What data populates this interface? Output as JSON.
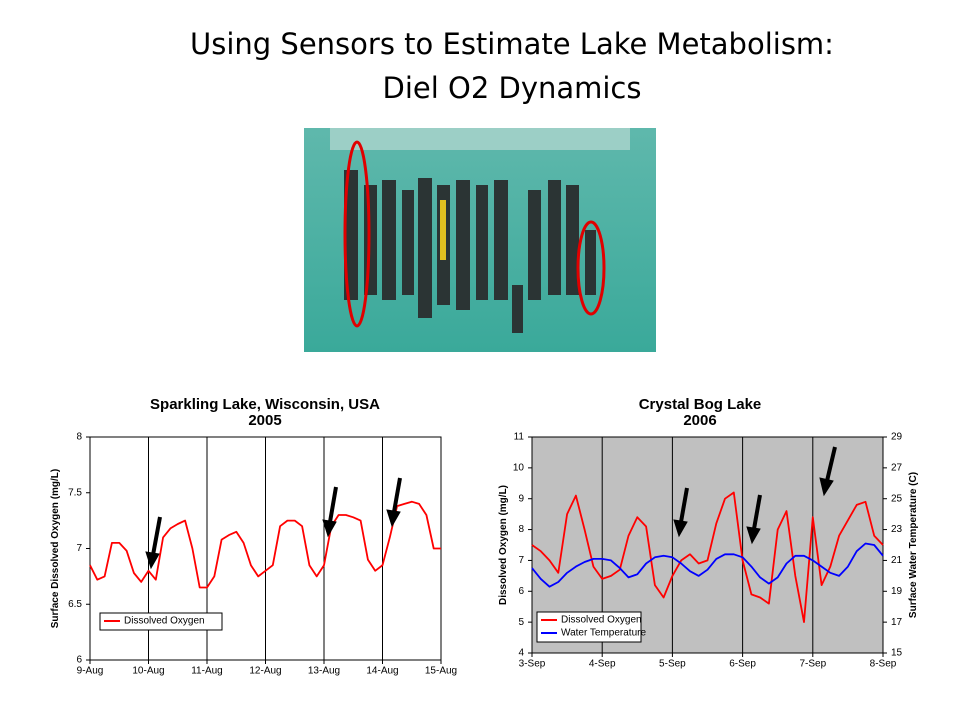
{
  "slide": {
    "title_lines": [
      "Using Sensors to Estimate Lake Metabolism:",
      "Diel O2 Dynamics"
    ]
  },
  "chart_data": [
    {
      "type": "line",
      "title": "Sparkling Lake, Wisconsin, USA",
      "subtitle": "2005",
      "y_label": "Surface Dissolved Oxygen (mg/L)",
      "xlim": [
        0,
        6
      ],
      "xticks": [
        {
          "value": 0,
          "label": "9-Aug"
        },
        {
          "value": 1,
          "label": "10-Aug"
        },
        {
          "value": 2,
          "label": "11-Aug"
        },
        {
          "value": 3,
          "label": "12-Aug"
        },
        {
          "value": 4,
          "label": "13-Aug"
        },
        {
          "value": 5,
          "label": "14-Aug"
        },
        {
          "value": 6,
          "label": "15-Aug"
        }
      ],
      "ylim": [
        6,
        8
      ],
      "yticks": [
        6,
        6.5,
        7,
        7.5,
        8
      ],
      "grid": true,
      "plot_background": "#ffffff",
      "legend": "lower left",
      "x": [
        0,
        0.125,
        0.25,
        0.375,
        0.5,
        0.625,
        0.75,
        0.875,
        1,
        1.125,
        1.25,
        1.375,
        1.5,
        1.625,
        1.75,
        1.875,
        2,
        2.125,
        2.25,
        2.375,
        2.5,
        2.625,
        2.75,
        2.875,
        3,
        3.125,
        3.25,
        3.375,
        3.5,
        3.625,
        3.75,
        3.875,
        4,
        4.125,
        4.25,
        4.375,
        4.5,
        4.625,
        4.75,
        4.875,
        5,
        5.125,
        5.25,
        5.375,
        5.5,
        5.625,
        5.75,
        5.875,
        6
      ],
      "series": [
        {
          "name": "Dissolved Oxygen",
          "color": "#ff0000",
          "values": [
            6.85,
            6.72,
            6.75,
            7.05,
            7.05,
            6.98,
            6.78,
            6.7,
            6.8,
            6.72,
            7.1,
            7.18,
            7.22,
            7.25,
            7.0,
            6.65,
            6.65,
            6.75,
            7.08,
            7.12,
            7.15,
            7.05,
            6.85,
            6.75,
            6.8,
            6.85,
            7.2,
            7.25,
            7.25,
            7.2,
            6.85,
            6.75,
            6.85,
            7.2,
            7.3,
            7.3,
            7.28,
            7.25,
            6.9,
            6.8,
            6.85,
            7.1,
            7.38,
            7.4,
            7.42,
            7.4,
            7.3,
            7.0,
            7.0
          ]
        }
      ]
    },
    {
      "type": "line",
      "title": "Crystal Bog Lake",
      "subtitle": "2006",
      "y_label": "Dissolved Oxygen (mg/L)",
      "y2_label": "Surface Water Temperature (C)",
      "xlim": [
        0,
        5
      ],
      "xticks": [
        {
          "value": 0,
          "label": "3-Sep"
        },
        {
          "value": 1,
          "label": "4-Sep"
        },
        {
          "value": 2,
          "label": "5-Sep"
        },
        {
          "value": 3,
          "label": "6-Sep"
        },
        {
          "value": 4,
          "label": "7-Sep"
        },
        {
          "value": 5,
          "label": "8-Sep"
        }
      ],
      "ylim": [
        4,
        11
      ],
      "yticks": [
        4,
        5,
        6,
        7,
        8,
        9,
        10,
        11
      ],
      "y2lim": [
        15,
        29
      ],
      "y2ticks": [
        15,
        17,
        19,
        21,
        23,
        25,
        27,
        29
      ],
      "grid": true,
      "plot_background": "#c0c0c0",
      "legend": "lower left",
      "x": [
        0,
        0.125,
        0.25,
        0.375,
        0.5,
        0.625,
        0.75,
        0.875,
        1,
        1.125,
        1.25,
        1.375,
        1.5,
        1.625,
        1.75,
        1.875,
        2,
        2.125,
        2.25,
        2.375,
        2.5,
        2.625,
        2.75,
        2.875,
        3,
        3.125,
        3.25,
        3.375,
        3.5,
        3.625,
        3.75,
        3.875,
        4,
        4.125,
        4.25,
        4.375,
        4.5,
        4.625,
        4.75,
        4.875,
        5
      ],
      "series": [
        {
          "name": "Dissolved Oxygen",
          "color": "#ff0000",
          "values": [
            7.5,
            7.3,
            7.0,
            6.6,
            8.5,
            9.1,
            8.0,
            6.8,
            6.4,
            6.5,
            6.7,
            7.8,
            8.4,
            8.1,
            6.2,
            5.8,
            6.5,
            7.0,
            7.2,
            6.9,
            7.0,
            8.2,
            9.0,
            9.2,
            7.0,
            5.9,
            5.8,
            5.6,
            8.0,
            8.6,
            6.5,
            5.0,
            8.4,
            6.2,
            6.8,
            7.8,
            8.3,
            8.8,
            8.9,
            7.8,
            7.5
          ]
        },
        {
          "name": "Water Temperature",
          "color": "#0000ff",
          "axis": "y2",
          "values": [
            20.5,
            19.8,
            19.3,
            19.6,
            20.2,
            20.6,
            20.9,
            21.1,
            21.1,
            21.0,
            20.5,
            19.9,
            20.1,
            20.8,
            21.2,
            21.3,
            21.2,
            20.8,
            20.3,
            20.0,
            20.4,
            21.1,
            21.4,
            21.4,
            21.2,
            20.6,
            19.9,
            19.5,
            19.9,
            20.8,
            21.3,
            21.3,
            21.0,
            20.6,
            20.2,
            20.0,
            20.6,
            21.6,
            22.1,
            22.0,
            21.3
          ]
        }
      ]
    }
  ]
}
